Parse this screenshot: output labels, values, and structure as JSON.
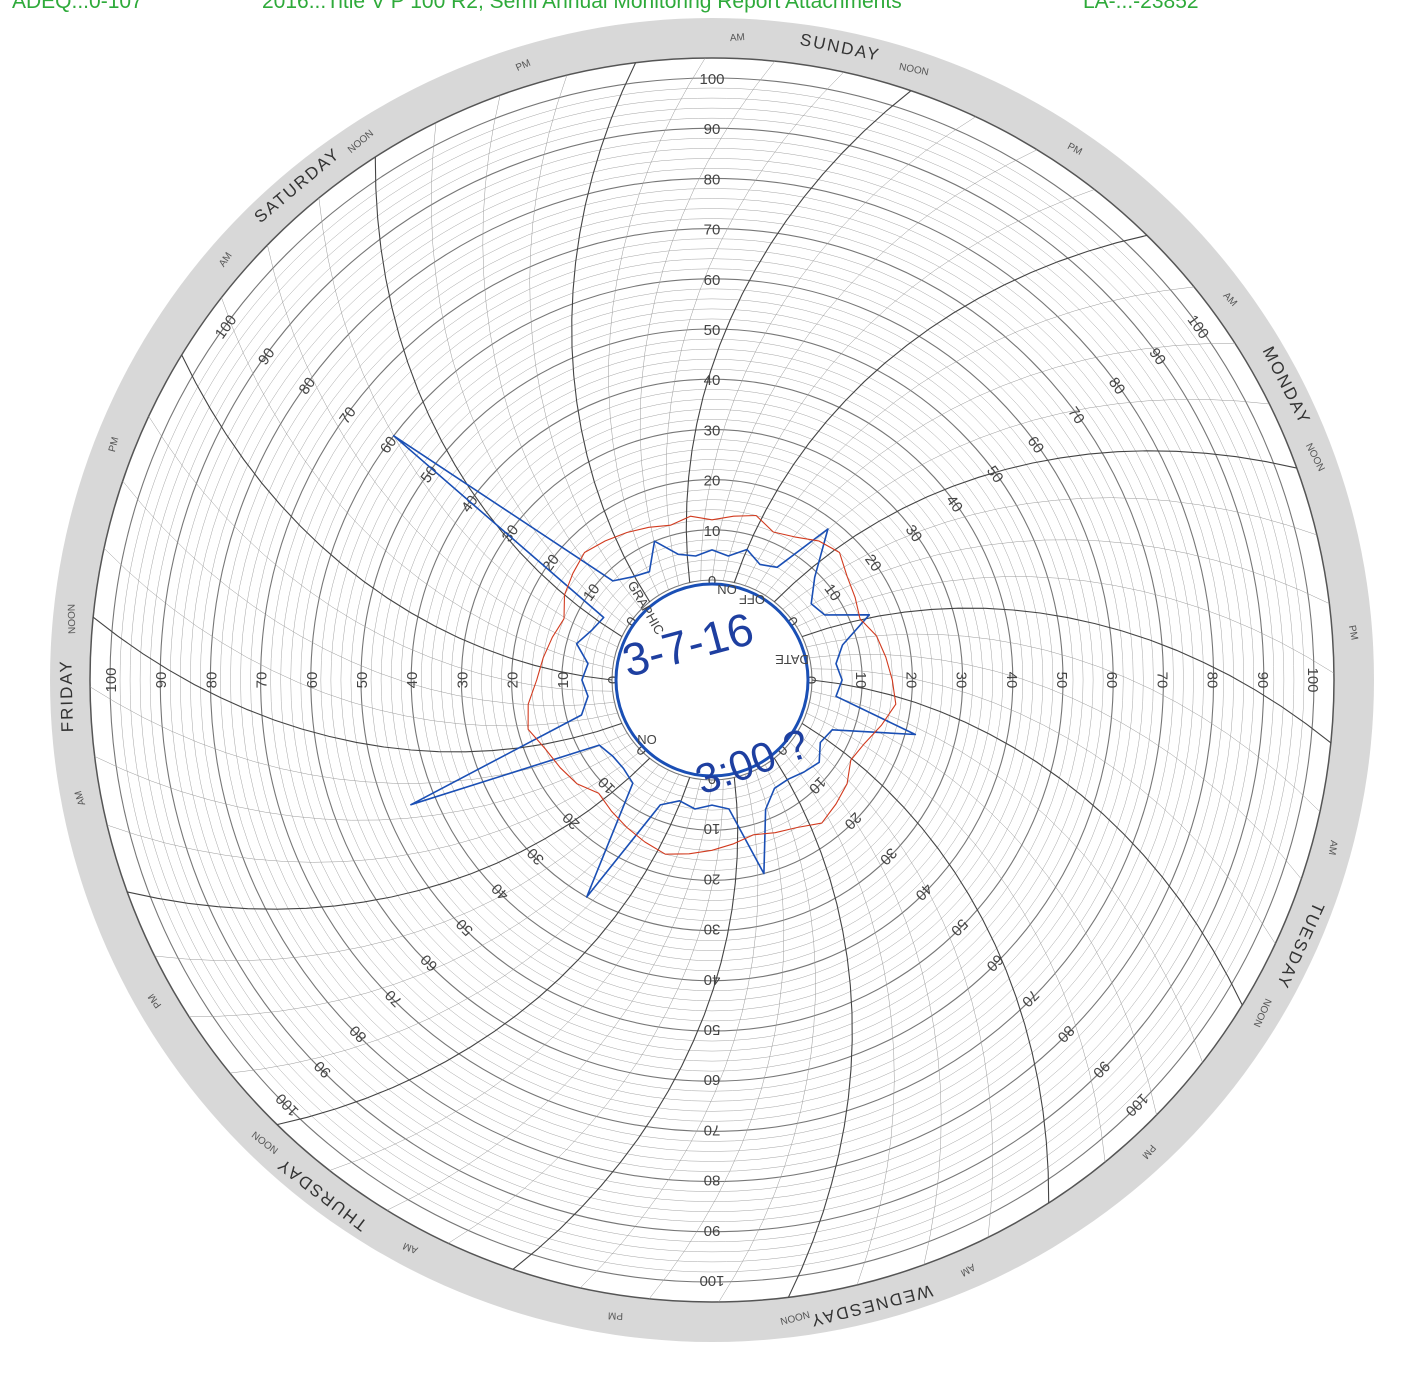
{
  "header": {
    "left": "ADEQ...0-107",
    "center": "2016...Title V P 100 R2, Semi Annual Monitoring Report Attachments",
    "right": "LA-...-23852"
  },
  "colors": {
    "header_text": "#2eaa3a",
    "paper": "#ffffff",
    "paper_shade": "#d8d8d8",
    "grid": "#9a9a9a",
    "trace_blue": "#1a4fb5",
    "trace_red": "#d23a1e"
  },
  "chart_data": {
    "type": "polar",
    "title": "",
    "scale_labels": [
      "0",
      "10",
      "20",
      "30",
      "40",
      "50",
      "60",
      "70",
      "80",
      "90",
      "100"
    ],
    "range": [
      0,
      100
    ],
    "days": [
      "SUNDAY",
      "MONDAY",
      "TUESDAY",
      "WEDNESDAY",
      "THURSDAY",
      "FRIDAY",
      "SATURDAY"
    ],
    "day_sub_labels": [
      "AM",
      "NOON",
      "PM"
    ],
    "hub_labels": {
      "date": "DATE",
      "on": "ON",
      "off": "OFF",
      "on2": "ON",
      "graphic": "GRAPHIC"
    },
    "handwritten": {
      "date": "3-7-16",
      "time": "3:00 ?"
    },
    "series": [
      {
        "color": "trace_blue",
        "description_shape": "spiky",
        "values": [
          6,
          5,
          7,
          5,
          6,
          18,
          9,
          5,
          6,
          14,
          7,
          5,
          6,
          5,
          22,
          6,
          5,
          7,
          6,
          5,
          5,
          8,
          20,
          6,
          5,
          6,
          5,
          7,
          30,
          6,
          5,
          5,
          6,
          45,
          7,
          5,
          6,
          5,
          8,
          6,
          5,
          60,
          8,
          6,
          5,
          10,
          6,
          5
        ]
      },
      {
        "color": "trace_red",
        "values": [
          12,
          13,
          14,
          12,
          13,
          15,
          16,
          14,
          13,
          12,
          14,
          15,
          16,
          17,
          15,
          13,
          12,
          14,
          15,
          16,
          14,
          13,
          12,
          13,
          14,
          15,
          16,
          15,
          14,
          13,
          12,
          14,
          15,
          16,
          18,
          17,
          15,
          14,
          13,
          12,
          14,
          15,
          16,
          15,
          14,
          13,
          12,
          13
        ]
      }
    ]
  }
}
